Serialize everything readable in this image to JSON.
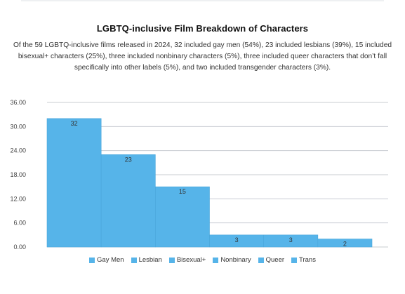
{
  "header": {
    "title": "LGBTQ-inclusive Film Breakdown of Characters",
    "description": "Of the 59 LGBTQ-inclusive films released in 2024, 32 included gay men (54%), 23 included lesbians (39%), 15 included bisexual+ characters (25%), three included nonbinary characters (5%), three included queer characters that don’t fall specifically into other labels (5%), and two included transgender characters (3%)."
  },
  "chart_data": {
    "type": "bar",
    "categories": [
      "Gay Men",
      "Lesbian",
      "Bisexual+",
      "Nonbinary",
      "Queer",
      "Trans"
    ],
    "values": [
      32,
      23,
      15,
      3,
      3,
      2
    ],
    "data_labels": [
      "32",
      "23",
      "15",
      "3",
      "3",
      "2"
    ],
    "ylim": [
      0,
      36
    ],
    "yticks": [
      0,
      6,
      12,
      18,
      24,
      30,
      36
    ],
    "ytick_labels": [
      "0.00",
      "6.00",
      "12.00",
      "18.00",
      "24.00",
      "30.00",
      "36.00"
    ],
    "grid": true,
    "legend_position": "bottom",
    "bar_color": "#56b4e9",
    "grid_color": "#c8ccd2"
  }
}
